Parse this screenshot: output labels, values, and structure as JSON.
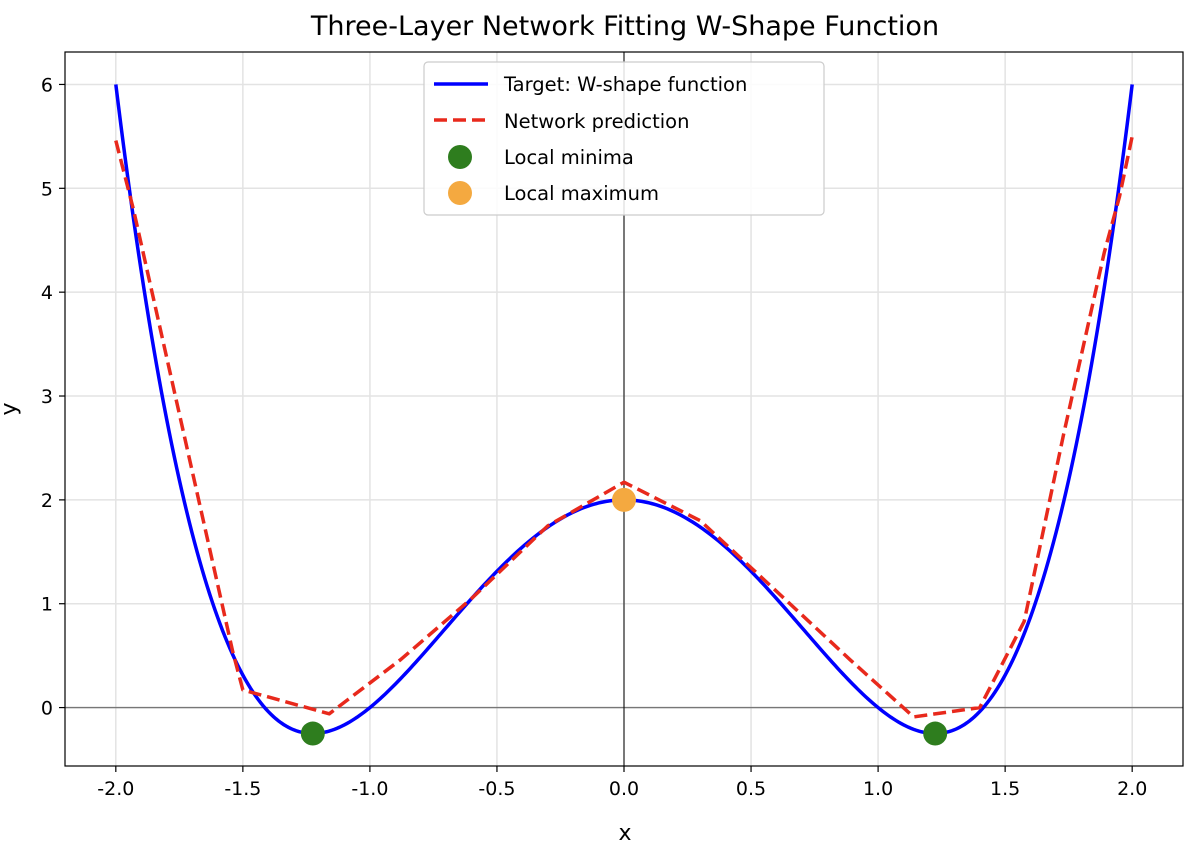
{
  "chart_data": {
    "type": "line",
    "title": "Three-Layer Network Fitting W-Shape Function",
    "xlabel": "x",
    "ylabel": "y",
    "xlim": [
      -2.2,
      2.2
    ],
    "ylim": [
      -0.5625,
      6.3125
    ],
    "xticks": [
      -2.0,
      -1.5,
      -1.0,
      -0.5,
      0.0,
      0.5,
      1.0,
      1.5,
      2.0
    ],
    "xtick_labels": [
      "-2.0",
      "-1.5",
      "-1.0",
      "-0.5",
      "0.0",
      "0.5",
      "1.0",
      "1.5",
      "2.0"
    ],
    "yticks": [
      0,
      1,
      2,
      3,
      4,
      5,
      6
    ],
    "ytick_labels": [
      "0",
      "1",
      "2",
      "3",
      "4",
      "5",
      "6"
    ],
    "grid": true,
    "legend_position": "top-center",
    "series": [
      {
        "name": "Target: W-shape function",
        "kind": "line",
        "style": "solid",
        "color": "#0000ff",
        "formula": "y = x^4 - 3x^2 + 2",
        "x_range": [
          -2.0,
          2.0
        ]
      },
      {
        "name": "Network prediction",
        "kind": "line",
        "style": "dashed",
        "color": "#e8291c",
        "x": [
          -2.0,
          -1.93,
          -1.54,
          -1.5,
          -1.16,
          -0.88,
          -0.6,
          -0.3,
          0.0,
          0.3,
          0.6,
          0.89,
          1.14,
          1.4,
          1.575,
          1.73,
          1.89,
          1.95,
          2.0
        ],
        "y": [
          5.46,
          4.79,
          0.54,
          0.17,
          -0.06,
          0.46,
          1.05,
          1.75,
          2.17,
          1.8,
          1.12,
          0.46,
          -0.09,
          0.0,
          0.83,
          2.63,
          4.38,
          4.92,
          5.5
        ]
      },
      {
        "name": "Local minima",
        "kind": "scatter",
        "color": "#2e7d1e",
        "x": [
          -1.2247,
          1.2247
        ],
        "y": [
          -0.25,
          -0.25
        ]
      },
      {
        "name": "Local maximum",
        "kind": "scatter",
        "color": "#f4a940",
        "x": [
          0.0
        ],
        "y": [
          2.0
        ]
      }
    ]
  }
}
